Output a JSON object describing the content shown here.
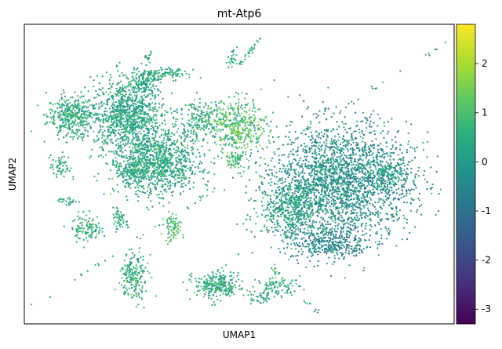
{
  "chart_data": {
    "type": "scatter",
    "title": "mt-Atp6",
    "xlabel": "UMAP1",
    "ylabel": "UMAP2",
    "xlim": [
      0,
      100
    ],
    "ylim": [
      0,
      100
    ],
    "grid": false,
    "show_axis_ticks": false,
    "colorbar": {
      "colormap": "viridis",
      "vmin": -3.3,
      "vmax": 2.8,
      "ticks": [
        -3,
        -2,
        -1,
        0,
        1,
        2
      ],
      "tick_labels": [
        "-3",
        "-2",
        "-1",
        "0",
        "1",
        "2"
      ],
      "stops": [
        "#440154",
        "#472d7b",
        "#3b528b",
        "#2c728e",
        "#21918c",
        "#28ae80",
        "#5ec962",
        "#addc30",
        "#fde725"
      ]
    },
    "clusters": [
      {
        "cx": 10.8,
        "cy": 69.5,
        "sx": 2.7,
        "sy": 3.4,
        "n": 380,
        "mean": 0.35,
        "sd": 0.45
      },
      {
        "cx": 23.8,
        "cy": 70.0,
        "sx": 4.0,
        "sy": 5.8,
        "n": 950,
        "mean": 0.15,
        "sd": 0.45
      },
      {
        "cx": 30.6,
        "cy": 54.0,
        "sx": 5.0,
        "sy": 5.4,
        "n": 1100,
        "mean": 0.2,
        "sd": 0.45
      },
      {
        "cx": 25.5,
        "cy": 51.0,
        "sx": 1.8,
        "sy": 1.5,
        "n": 110,
        "mean": 0.2,
        "sd": 0.4
      },
      {
        "cx": 27.9,
        "cy": 81.2,
        "sx": 1.6,
        "sy": 2.2,
        "n": 120,
        "mean": 0.2,
        "sd": 0.4
      },
      {
        "cx": 32.5,
        "cy": 83.5,
        "sx": 2.8,
        "sy": 1.0,
        "n": 110,
        "mean": 0.3,
        "sd": 0.4
      },
      {
        "cx": 40.5,
        "cy": 68.0,
        "sx": 3.0,
        "sy": 3.4,
        "n": 200,
        "mean": 0.45,
        "sd": 0.45
      },
      {
        "cx": 49.5,
        "cy": 66.0,
        "sx": 3.5,
        "sy": 4.5,
        "n": 450,
        "mean": 0.9,
        "sd": 0.55
      },
      {
        "cx": 49.0,
        "cy": 54.5,
        "sx": 1.3,
        "sy": 1.2,
        "n": 60,
        "mean": 0.7,
        "sd": 0.4
      },
      {
        "cx": 62.0,
        "cy": 38.5,
        "sx": 4.0,
        "sy": 5.5,
        "n": 520,
        "mean": 0.15,
        "sd": 0.45
      },
      {
        "cx": 74.0,
        "cy": 47.5,
        "sx": 8.0,
        "sy": 9.5,
        "n": 2300,
        "mean": -0.35,
        "sd": 0.55
      },
      {
        "cx": 71.0,
        "cy": 27.0,
        "sx": 4.5,
        "sy": 2.8,
        "n": 350,
        "mean": -0.6,
        "sd": 0.5
      },
      {
        "cx": 85.0,
        "cy": 50.0,
        "sx": 2.0,
        "sy": 2.5,
        "n": 120,
        "mean": 0.0,
        "sd": 0.45
      },
      {
        "cx": 8.5,
        "cy": 52.5,
        "sx": 1.2,
        "sy": 2.0,
        "n": 60,
        "mean": 0.3,
        "sd": 0.4
      },
      {
        "cx": 10.2,
        "cy": 41.0,
        "sx": 1.2,
        "sy": 0.6,
        "n": 25,
        "mean": 0.3,
        "sd": 0.4
      },
      {
        "cx": 14.5,
        "cy": 32.0,
        "sx": 1.7,
        "sy": 2.2,
        "n": 110,
        "mean": 0.45,
        "sd": 0.45
      },
      {
        "cx": 21.8,
        "cy": 35.5,
        "sx": 0.6,
        "sy": 2.0,
        "n": 40,
        "mean": 0.4,
        "sd": 0.4
      },
      {
        "cx": 34.7,
        "cy": 32.0,
        "sx": 1.0,
        "sy": 2.3,
        "n": 80,
        "mean": 0.9,
        "sd": 0.5
      },
      {
        "cx": 25.5,
        "cy": 15.5,
        "sx": 1.6,
        "sy": 3.6,
        "n": 200,
        "mean": 0.45,
        "sd": 0.5
      },
      {
        "cx": 44.8,
        "cy": 13.0,
        "sx": 2.6,
        "sy": 2.4,
        "n": 260,
        "mean": 0.3,
        "sd": 0.45
      },
      {
        "cx": 55.0,
        "cy": 8.5,
        "sx": 1.2,
        "sy": 1.0,
        "n": 40,
        "mean": 0.3,
        "sd": 0.4
      },
      {
        "cx": 59.0,
        "cy": 12.5,
        "sx": 2.5,
        "sy": 1.6,
        "n": 90,
        "mean": 0.3,
        "sd": 0.45
      },
      {
        "cx": 58.5,
        "cy": 17.0,
        "sx": 0.6,
        "sy": 1.5,
        "n": 15,
        "mean": 1.0,
        "sd": 0.5
      },
      {
        "cx": 48.3,
        "cy": 89.0,
        "sx": 0.6,
        "sy": 1.4,
        "n": 25,
        "mean": 0.3,
        "sd": 0.4
      },
      {
        "cx": 28.8,
        "cy": 89.5,
        "sx": 0.5,
        "sy": 1.0,
        "n": 12,
        "mean": 0.3,
        "sd": 0.4
      }
    ],
    "segments": [
      {
        "x0": 50.0,
        "y0": 86.5,
        "x1": 55.5,
        "y1": 96.0,
        "n": 30,
        "mean": 0.6,
        "sd": 0.4
      },
      {
        "x0": 22.0,
        "y0": 38.0,
        "x1": 24.5,
        "y1": 31.5,
        "n": 15,
        "mean": 0.4,
        "sd": 0.4
      },
      {
        "x0": 40.0,
        "y0": 15.5,
        "x1": 43.5,
        "y1": 13.0,
        "n": 10,
        "mean": 0.3,
        "sd": 0.4
      },
      {
        "x0": 65.0,
        "y0": 8.0,
        "x1": 66.5,
        "y1": 6.5,
        "n": 6,
        "mean": 0.3,
        "sd": 0.4
      },
      {
        "x0": 68.0,
        "y0": 4.5,
        "x1": 68.8,
        "y1": 4.0,
        "n": 4,
        "mean": -0.6,
        "sd": 0.3
      },
      {
        "x0": 2.0,
        "y0": 6.0,
        "x1": 98.0,
        "y1": 94.0,
        "n": 60,
        "mean": 0.2,
        "sd": 0.5
      }
    ]
  }
}
